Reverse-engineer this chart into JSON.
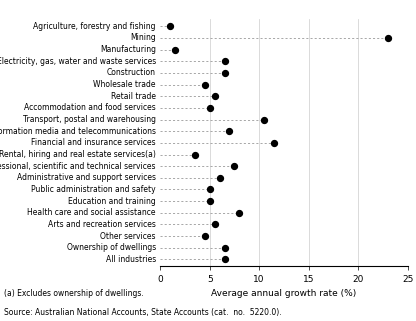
{
  "categories": [
    "Agriculture, forestry and fishing",
    "Mining",
    "Manufacturing",
    "Electricity, gas, water and waste services",
    "Construction",
    "Wholesale trade",
    "Retail trade",
    "Accommodation and food services",
    "Transport, postal and warehousing",
    "Information media and telecommunications",
    "Financial and insurance services",
    "Rental, hiring and real estate services(a)",
    "Professional, scientific and technical services",
    "Administrative and support services",
    "Public administration and safety",
    "Education and training",
    "Health care and social assistance",
    "Arts and recreation services",
    "Other services",
    "Ownership of dwellings",
    "All industries"
  ],
  "values": [
    1.0,
    23.0,
    1.5,
    6.5,
    6.5,
    4.5,
    5.5,
    5.0,
    10.5,
    7.0,
    11.5,
    3.5,
    7.5,
    6.0,
    5.0,
    5.0,
    8.0,
    5.5,
    4.5,
    6.5,
    6.5
  ],
  "xlabel": "Average annual growth rate (%)",
  "xlim": [
    0,
    25
  ],
  "xticks": [
    0,
    5,
    10,
    15,
    20,
    25
  ],
  "note1": "(a) Excludes ownership of dwellings.",
  "note2": "Source: Australian National Accounts, State Accounts (cat.  no.  5220.0).",
  "dot_color": "#000000",
  "line_color": "#999999",
  "bg_color": "#ffffff",
  "dot_size": 18,
  "label_fontsize": 5.5,
  "xlabel_fontsize": 6.5,
  "tick_fontsize": 6.5,
  "note_fontsize": 5.5
}
